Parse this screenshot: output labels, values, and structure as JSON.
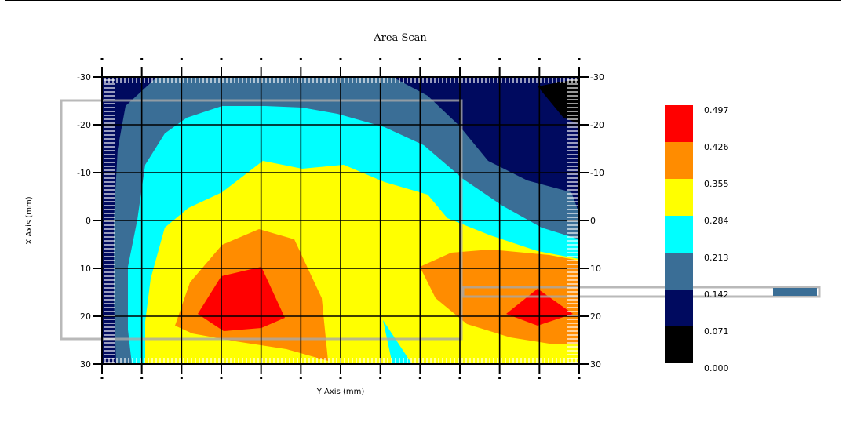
{
  "chart_data": {
    "type": "heatmap",
    "title": "Area Scan",
    "xlabel": "Y Axis (mm)",
    "ylabel": "X Axis (mm)",
    "y_range": [
      -30,
      30
    ],
    "x_range": [
      -60,
      60
    ],
    "y_ticks": [
      "-30",
      "-20",
      "-10",
      "0",
      "10",
      "20",
      "30"
    ],
    "grid": true,
    "palette": [
      "#000000",
      "#000a5f",
      "#3a6e96",
      "#00ffff",
      "#ffff00",
      "#ff8c00",
      "#ff0000"
    ],
    "legend": {
      "placement": "right",
      "levels": [
        "0.497",
        "0.426",
        "0.355",
        "0.284",
        "0.213",
        "0.142",
        "0.071",
        "0.000"
      ],
      "colors": [
        "#ff0000",
        "#ff8c00",
        "#ffff00",
        "#00ffff",
        "#3a6e96",
        "#000a5f",
        "#000000"
      ]
    }
  }
}
